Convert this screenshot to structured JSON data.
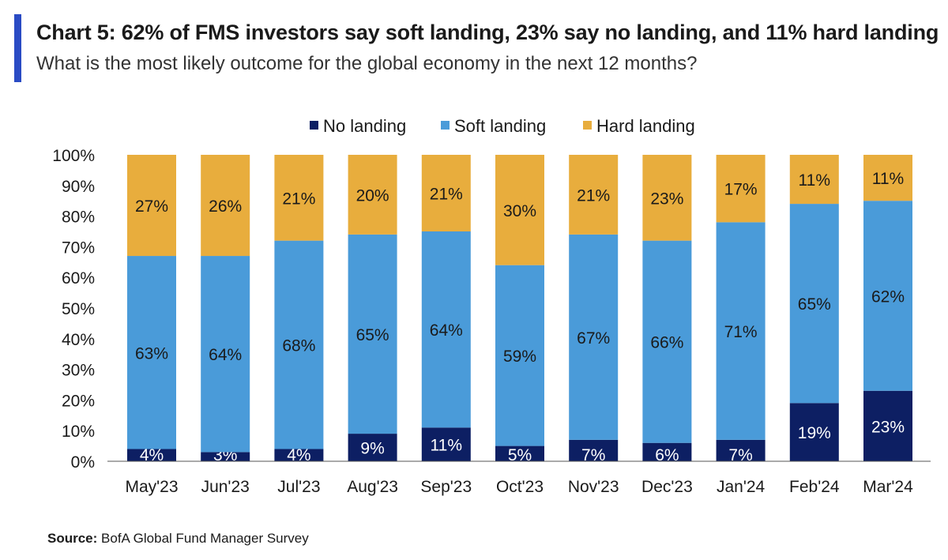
{
  "header": {
    "title": "Chart 5: 62% of FMS investors say soft landing, 23% say no landing, and 11% hard landing",
    "subtitle": "What is the most likely outcome for the global economy in the next 12 months?"
  },
  "footer": {
    "source_label": "Source:",
    "source_text": "BofA Global Fund Manager Survey"
  },
  "colors": {
    "accent": "#2A4BC4",
    "no_landing": "#0D1F63",
    "soft_landing": "#4A9BD9",
    "hard_landing": "#E8AD3D"
  },
  "chart_data": {
    "type": "bar",
    "stacked": true,
    "categories": [
      "May'23",
      "Jun'23",
      "Jul'23",
      "Aug'23",
      "Sep'23",
      "Oct'23",
      "Nov'23",
      "Dec'23",
      "Jan'24",
      "Feb'24",
      "Mar'24"
    ],
    "series": [
      {
        "name": "No landing",
        "color": "#0D1F63",
        "values": [
          4,
          3,
          4,
          9,
          11,
          5,
          7,
          6,
          7,
          19,
          23
        ]
      },
      {
        "name": "Soft landing",
        "color": "#4A9BD9",
        "values": [
          63,
          64,
          68,
          65,
          64,
          59,
          67,
          66,
          71,
          65,
          62
        ]
      },
      {
        "name": "Hard landing",
        "color": "#E8AD3D",
        "values": [
          27,
          26,
          21,
          20,
          21,
          30,
          21,
          23,
          17,
          11,
          11
        ]
      }
    ],
    "ylim": [
      0,
      100
    ],
    "yticks": [
      "0%",
      "10%",
      "20%",
      "30%",
      "40%",
      "50%",
      "60%",
      "70%",
      "80%",
      "90%",
      "100%"
    ],
    "legend_position": "top-center",
    "grid": false
  }
}
